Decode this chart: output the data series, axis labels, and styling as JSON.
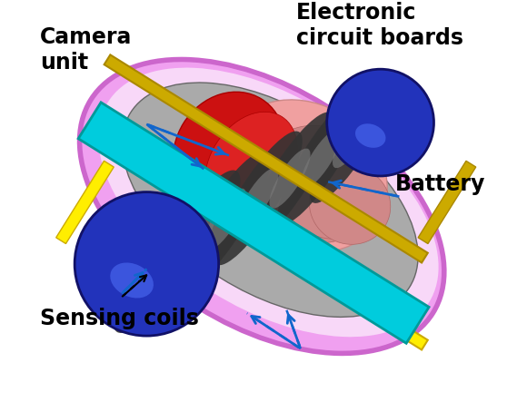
{
  "background_color": "#ffffff",
  "labels": {
    "camera_unit": "Camera\nunit",
    "electronic_circuit_boards": "Electronic\ncircuit boards",
    "sensing_coils": "Sensing coils",
    "battery": "Battery"
  },
  "colors": {
    "outer_shell": "#f0a0f0",
    "outer_shell_edge": "#cc66cc",
    "outer_shell_inner": "#e888e8",
    "green_cap": "#44bb44",
    "yellow_frame": "#ffee00",
    "yellow_frame_dark": "#ccaa00",
    "blue_sphere": "#2233bb",
    "blue_sphere_hl": "#4455dd",
    "gray_body": "#aaaaaa",
    "gray_mid": "#888888",
    "dark_stripe": "#333333",
    "red_section": "#cc1111",
    "pink_section": "#f0a0a0",
    "pink_dark": "#cc8888",
    "cyan_board": "#00ccdd",
    "cyan_dark": "#009999",
    "teal_end": "#008888",
    "arrow_color": "#1166cc"
  },
  "figsize": [
    5.8,
    4.43
  ],
  "dpi": 100
}
